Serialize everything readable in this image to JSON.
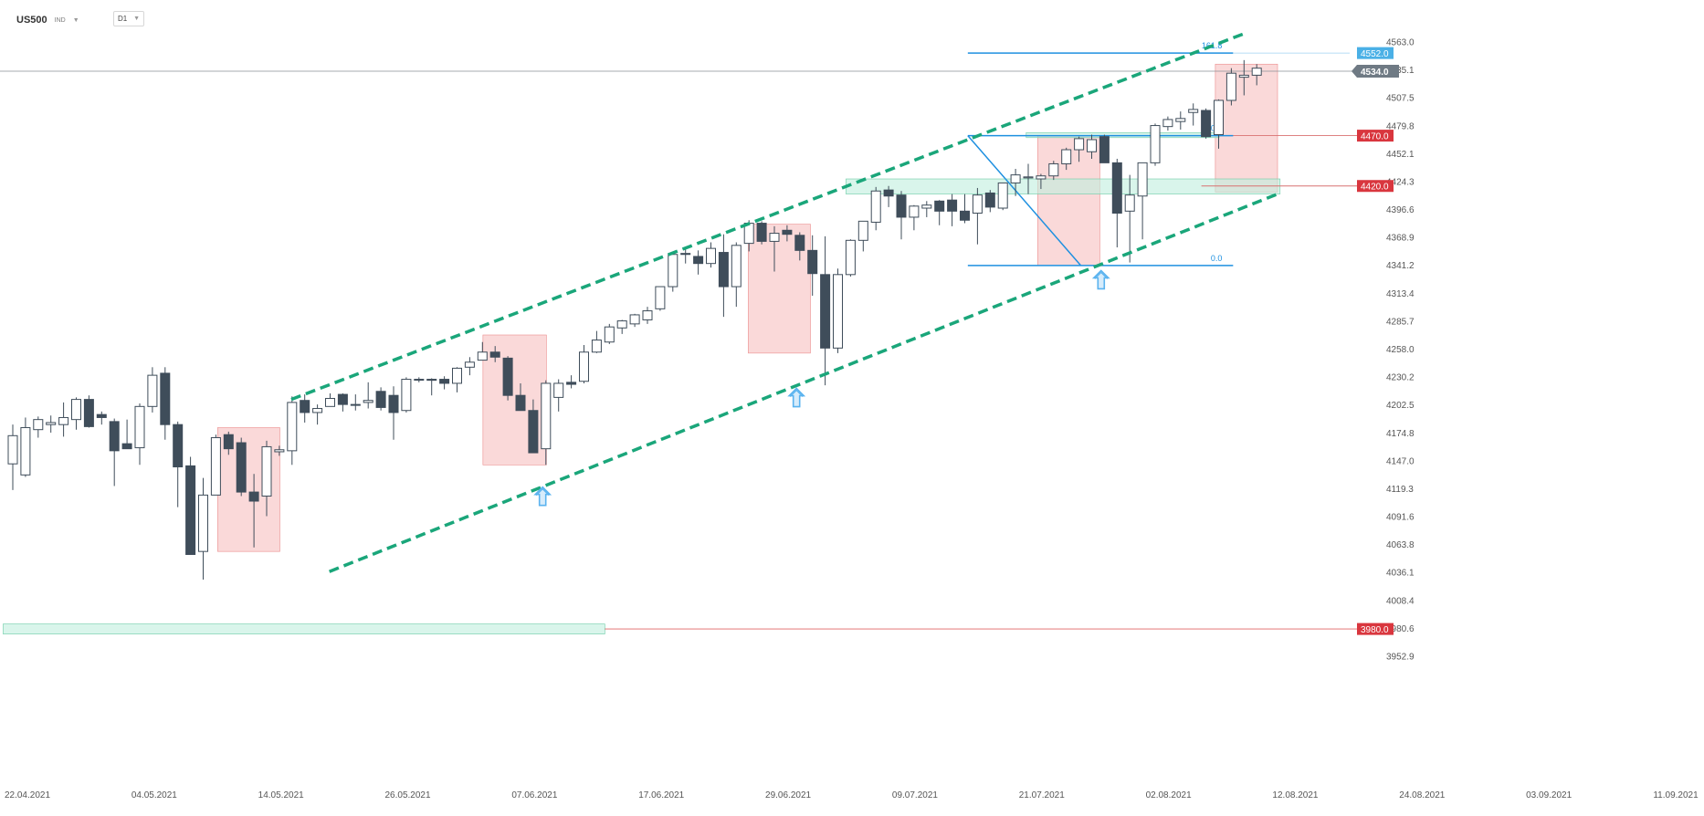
{
  "header": {
    "symbol": "US500",
    "instrument_type": "IND",
    "timeframe": "D1",
    "dropdown_icon": "chevron-down-icon"
  },
  "colors": {
    "bull_fill": "#ffffff",
    "bear_fill": "#3f4d5a",
    "candle_outline": "#3f4d5a",
    "channel": "#1aa67a",
    "fib": "#1e90e0",
    "zone_green": "#bfeede",
    "zone_red": "#f5b9b9",
    "price_current": "#6f7a84",
    "price_fib": "#4ab0e6",
    "price_level": "#d9363e",
    "arrow": "#5ab3ef"
  },
  "chart_data": {
    "type": "candlestick",
    "title": "",
    "xlabel": "",
    "ylabel": "",
    "ylim": [
      3940,
      4576
    ],
    "grid": false,
    "y_ticks": [
      "4563.0",
      "4535.1",
      "4507.5",
      "4479.8",
      "4452.1",
      "4424.3",
      "4396.6",
      "4368.9",
      "4341.2",
      "4313.4",
      "4285.7",
      "4258.0",
      "4230.2",
      "4202.5",
      "4174.8",
      "4147.0",
      "4119.3",
      "4091.6",
      "4063.8",
      "4036.1",
      "4008.4",
      "3980.6",
      "3952.9"
    ],
    "x_ticks": [
      "22.04.2021",
      "04.05.2021",
      "14.05.2021",
      "26.05.2021",
      "07.06.2021",
      "17.06.2021",
      "29.06.2021",
      "09.07.2021",
      "21.07.2021",
      "02.08.2021",
      "12.08.2021",
      "24.08.2021",
      "03.09.2021",
      "11.09.2021"
    ],
    "candles": [
      {
        "o": 4144,
        "h": 4183,
        "l": 4118,
        "c": 4172
      },
      {
        "o": 4133,
        "h": 4190,
        "l": 4131,
        "c": 4180
      },
      {
        "o": 4178,
        "h": 4191,
        "l": 4170,
        "c": 4188
      },
      {
        "o": 4183,
        "h": 4192,
        "l": 4175,
        "c": 4185
      },
      {
        "o": 4183,
        "h": 4205,
        "l": 4171,
        "c": 4190
      },
      {
        "o": 4188,
        "h": 4210,
        "l": 4178,
        "c": 4208
      },
      {
        "o": 4208,
        "h": 4212,
        "l": 4180,
        "c": 4181
      },
      {
        "o": 4193,
        "h": 4196,
        "l": 4183,
        "c": 4190
      },
      {
        "o": 4186,
        "h": 4189,
        "l": 4122,
        "c": 4157
      },
      {
        "o": 4164,
        "h": 4188,
        "l": 4160,
        "c": 4159
      },
      {
        "o": 4160,
        "h": 4204,
        "l": 4143,
        "c": 4201
      },
      {
        "o": 4201,
        "h": 4240,
        "l": 4195,
        "c": 4232
      },
      {
        "o": 4234,
        "h": 4240,
        "l": 4168,
        "c": 4183
      },
      {
        "o": 4183,
        "h": 4186,
        "l": 4101,
        "c": 4141
      },
      {
        "o": 4142,
        "h": 4151,
        "l": 4054,
        "c": 4054
      },
      {
        "o": 4057,
        "h": 4130,
        "l": 4029,
        "c": 4113
      },
      {
        "o": 4113,
        "h": 4173,
        "l": 4113,
        "c": 4170
      },
      {
        "o": 4173,
        "h": 4176,
        "l": 4153,
        "c": 4159
      },
      {
        "o": 4165,
        "h": 4170,
        "l": 4112,
        "c": 4116
      },
      {
        "o": 4116,
        "h": 4134,
        "l": 4061,
        "c": 4107
      },
      {
        "o": 4112,
        "h": 4167,
        "l": 4092,
        "c": 4161
      },
      {
        "o": 4156,
        "h": 4162,
        "l": 4152,
        "c": 4158
      },
      {
        "o": 4157,
        "h": 4211,
        "l": 4143,
        "c": 4205
      },
      {
        "o": 4207,
        "h": 4213,
        "l": 4185,
        "c": 4195
      },
      {
        "o": 4195,
        "h": 4203,
        "l": 4183,
        "c": 4199
      },
      {
        "o": 4201,
        "h": 4214,
        "l": 4201,
        "c": 4209
      },
      {
        "o": 4213,
        "h": 4214,
        "l": 4196,
        "c": 4203
      },
      {
        "o": 4203,
        "h": 4213,
        "l": 4197,
        "c": 4203
      },
      {
        "o": 4205,
        "h": 4225,
        "l": 4199,
        "c": 4207
      },
      {
        "o": 4216,
        "h": 4220,
        "l": 4197,
        "c": 4200
      },
      {
        "o": 4212,
        "h": 4221,
        "l": 4168,
        "c": 4195
      },
      {
        "o": 4197,
        "h": 4230,
        "l": 4195,
        "c": 4228
      },
      {
        "o": 4228,
        "h": 4230,
        "l": 4225,
        "c": 4228
      },
      {
        "o": 4228,
        "h": 4229,
        "l": 4212,
        "c": 4227
      },
      {
        "o": 4228,
        "h": 4231,
        "l": 4218,
        "c": 4224
      },
      {
        "o": 4224,
        "h": 4240,
        "l": 4215,
        "c": 4239
      },
      {
        "o": 4240,
        "h": 4250,
        "l": 4232,
        "c": 4245
      },
      {
        "o": 4247,
        "h": 4265,
        "l": 4247,
        "c": 4255
      },
      {
        "o": 4255,
        "h": 4261,
        "l": 4245,
        "c": 4250
      },
      {
        "o": 4249,
        "h": 4251,
        "l": 4207,
        "c": 4212
      },
      {
        "o": 4212,
        "h": 4224,
        "l": 4197,
        "c": 4197
      },
      {
        "o": 4197,
        "h": 4208,
        "l": 4155,
        "c": 4155
      },
      {
        "o": 4159,
        "h": 4227,
        "l": 4143,
        "c": 4224
      },
      {
        "o": 4210,
        "h": 4228,
        "l": 4196,
        "c": 4224
      },
      {
        "o": 4225,
        "h": 4232,
        "l": 4219,
        "c": 4223
      },
      {
        "o": 4226,
        "h": 4262,
        "l": 4224,
        "c": 4255
      },
      {
        "o": 4255,
        "h": 4276,
        "l": 4254,
        "c": 4267
      },
      {
        "o": 4265,
        "h": 4283,
        "l": 4263,
        "c": 4280
      },
      {
        "o": 4279,
        "h": 4287,
        "l": 4273,
        "c": 4286
      },
      {
        "o": 4283,
        "h": 4293,
        "l": 4280,
        "c": 4292
      },
      {
        "o": 4287,
        "h": 4300,
        "l": 4283,
        "c": 4296
      },
      {
        "o": 4298,
        "h": 4320,
        "l": 4296,
        "c": 4320
      },
      {
        "o": 4320,
        "h": 4354,
        "l": 4315,
        "c": 4352
      },
      {
        "o": 4353,
        "h": 4357,
        "l": 4343,
        "c": 4352
      },
      {
        "o": 4350,
        "h": 4356,
        "l": 4332,
        "c": 4343
      },
      {
        "o": 4343,
        "h": 4364,
        "l": 4339,
        "c": 4358
      },
      {
        "o": 4354,
        "h": 4372,
        "l": 4290,
        "c": 4320
      },
      {
        "o": 4320,
        "h": 4364,
        "l": 4300,
        "c": 4361
      },
      {
        "o": 4363,
        "h": 4386,
        "l": 4355,
        "c": 4383
      },
      {
        "o": 4383,
        "h": 4385,
        "l": 4362,
        "c": 4365
      },
      {
        "o": 4365,
        "h": 4380,
        "l": 4335,
        "c": 4373
      },
      {
        "o": 4376,
        "h": 4381,
        "l": 4365,
        "c": 4372
      },
      {
        "o": 4371,
        "h": 4374,
        "l": 4346,
        "c": 4356
      },
      {
        "o": 4356,
        "h": 4371,
        "l": 4311,
        "c": 4333
      },
      {
        "o": 4332,
        "h": 4370,
        "l": 4222,
        "c": 4259
      },
      {
        "o": 4259,
        "h": 4338,
        "l": 4254,
        "c": 4332
      },
      {
        "o": 4332,
        "h": 4367,
        "l": 4330,
        "c": 4366
      },
      {
        "o": 4366,
        "h": 4385,
        "l": 4355,
        "c": 4385
      },
      {
        "o": 4384,
        "h": 4419,
        "l": 4376,
        "c": 4415
      },
      {
        "o": 4416,
        "h": 4420,
        "l": 4399,
        "c": 4410
      },
      {
        "o": 4411,
        "h": 4415,
        "l": 4367,
        "c": 4389
      },
      {
        "o": 4389,
        "h": 4401,
        "l": 4376,
        "c": 4400
      },
      {
        "o": 4398,
        "h": 4405,
        "l": 4389,
        "c": 4401
      },
      {
        "o": 4405,
        "h": 4406,
        "l": 4381,
        "c": 4395
      },
      {
        "o": 4406,
        "h": 4412,
        "l": 4380,
        "c": 4395
      },
      {
        "o": 4395,
        "h": 4412,
        "l": 4383,
        "c": 4386
      },
      {
        "o": 4393,
        "h": 4418,
        "l": 4362,
        "c": 4411
      },
      {
        "o": 4413,
        "h": 4416,
        "l": 4394,
        "c": 4399
      },
      {
        "o": 4398,
        "h": 4423,
        "l": 4396,
        "c": 4423
      },
      {
        "o": 4423,
        "h": 4437,
        "l": 4410,
        "c": 4431
      },
      {
        "o": 4428,
        "h": 4442,
        "l": 4412,
        "c": 4429
      },
      {
        "o": 4427,
        "h": 4432,
        "l": 4417,
        "c": 4430
      },
      {
        "o": 4430,
        "h": 4445,
        "l": 4426,
        "c": 4442
      },
      {
        "o": 4442,
        "h": 4458,
        "l": 4436,
        "c": 4456
      },
      {
        "o": 4456,
        "h": 4469,
        "l": 4444,
        "c": 4467
      },
      {
        "o": 4454,
        "h": 4471,
        "l": 4447,
        "c": 4466
      },
      {
        "o": 4469,
        "h": 4471,
        "l": 4443,
        "c": 4443
      },
      {
        "o": 4443,
        "h": 4447,
        "l": 4359,
        "c": 4393
      },
      {
        "o": 4395,
        "h": 4431,
        "l": 4344,
        "c": 4411
      },
      {
        "o": 4410,
        "h": 4441,
        "l": 4367,
        "c": 4443
      },
      {
        "o": 4443,
        "h": 4482,
        "l": 4440,
        "c": 4480
      },
      {
        "o": 4479,
        "h": 4489,
        "l": 4475,
        "c": 4486
      },
      {
        "o": 4484,
        "h": 4494,
        "l": 4476,
        "c": 4487
      },
      {
        "o": 4493,
        "h": 4502,
        "l": 4480,
        "c": 4496
      },
      {
        "o": 4495,
        "h": 4497,
        "l": 4467,
        "c": 4469
      },
      {
        "o": 4471,
        "h": 4506,
        "l": 4457,
        "c": 4505
      },
      {
        "o": 4505,
        "h": 4537,
        "l": 4500,
        "c": 4532
      },
      {
        "o": 4528,
        "h": 4545,
        "l": 4510,
        "c": 4530
      },
      {
        "o": 4530,
        "h": 4541,
        "l": 4520,
        "c": 4537
      }
    ],
    "fib_levels": [
      {
        "label": "161.8",
        "value": 4552.0
      },
      {
        "label": "100.0",
        "value": 4470.0
      },
      {
        "label": "0.0",
        "value": 4341.0
      }
    ],
    "price_labels": [
      {
        "text": "4552.0",
        "value": 4552.0,
        "kind": "fib"
      },
      {
        "text": "4534.0",
        "value": 4534.0,
        "kind": "current"
      },
      {
        "text": "4470.0",
        "value": 4470.0,
        "kind": "level"
      },
      {
        "text": "4420.0",
        "value": 4420.0,
        "kind": "level"
      },
      {
        "text": "3980.0",
        "value": 3980.0,
        "kind": "level"
      }
    ],
    "horizontal_levels": [
      {
        "value": 4534.0,
        "style": "current"
      },
      {
        "value": 4470.0,
        "style": "support"
      },
      {
        "value": 4420.0,
        "style": "support"
      },
      {
        "value": 3980.0,
        "style": "support"
      }
    ],
    "channel": {
      "upper": {
        "from": {
          "bar": 22.3,
          "price": 4208
        },
        "to": {
          "bar": 97.3,
          "price": 4571
        }
      },
      "lower": {
        "from": {
          "bar": 25.3,
          "price": 4037
        },
        "to": {
          "bar": 100.0,
          "price": 4412
        }
      }
    },
    "fib_swing": {
      "from": {
        "bar": 75.6,
        "price": 4470
      },
      "to": {
        "bar": 84.5,
        "price": 4341
      }
    },
    "zones_green": [
      {
        "bar_from": 66.0,
        "bar_to": 100.2,
        "price_low": 4412,
        "price_high": 4427
      },
      {
        "bar_from": 80.2,
        "bar_to": 95.4,
        "price_low": 4468,
        "price_high": 4473
      },
      {
        "bar_from": -0.4,
        "bar_to": 47.0,
        "price_low": 3975,
        "price_high": 3985
      }
    ],
    "zones_red": [
      {
        "bar_from": 16.5,
        "bar_to": 21.4,
        "price_low": 4057,
        "price_high": 4180
      },
      {
        "bar_from": 37.4,
        "bar_to": 42.4,
        "price_low": 4143,
        "price_high": 4272
      },
      {
        "bar_from": 58.3,
        "bar_to": 63.2,
        "price_low": 4254,
        "price_high": 4382
      },
      {
        "bar_from": 81.1,
        "bar_to": 86.0,
        "price_low": 4341,
        "price_high": 4470
      },
      {
        "bar_from": 95.1,
        "bar_to": 100.0,
        "price_low": 4414,
        "price_high": 4541
      }
    ],
    "arrows": [
      {
        "bar": 42.1,
        "price": 4130
      },
      {
        "bar": 62.1,
        "price": 4228
      },
      {
        "bar": 86.1,
        "price": 4345
      }
    ]
  }
}
